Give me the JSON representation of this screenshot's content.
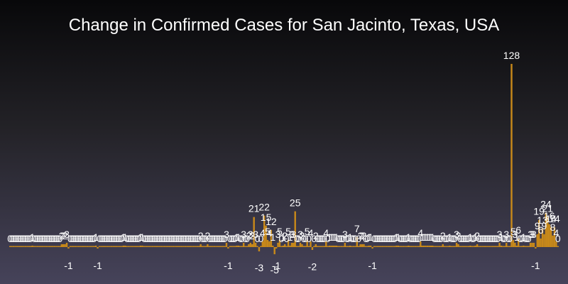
{
  "chart_data": {
    "type": "bar",
    "title": "Change in Confirmed Cases for San Jacinto, Texas, USA",
    "xlabel": "",
    "ylabel": "",
    "bar_color": "#c8891a",
    "label_color": "#ffffff",
    "ylim": [
      -5,
      128
    ],
    "grid": false,
    "legend": "none",
    "values": [
      0,
      0,
      0,
      0,
      0,
      0,
      0,
      0,
      0,
      0,
      0,
      0,
      0,
      1,
      0,
      0,
      0,
      0,
      0,
      0,
      0,
      0,
      0,
      0,
      0,
      0,
      0,
      0,
      0,
      0,
      2,
      2,
      2,
      3,
      -1,
      0,
      0,
      0,
      0,
      0,
      0,
      0,
      0,
      0,
      0,
      0,
      0,
      0,
      0,
      0,
      1,
      -1,
      0,
      0,
      0,
      0,
      0,
      0,
      0,
      0,
      0,
      0,
      0,
      0,
      0,
      0,
      1,
      1,
      0,
      0,
      0,
      0,
      0,
      0,
      0,
      0,
      1,
      1,
      0,
      0,
      0,
      0,
      0,
      0,
      0,
      0,
      0,
      0,
      0,
      0,
      0,
      0,
      0,
      0,
      0,
      0,
      0,
      0,
      0,
      0,
      0,
      0,
      0,
      0,
      0,
      0,
      0,
      0,
      0,
      0,
      0,
      2,
      0,
      0,
      0,
      2,
      0,
      0,
      0,
      0,
      0,
      0,
      0,
      0,
      0,
      0,
      3,
      -1,
      0,
      0,
      0,
      0,
      1,
      1,
      0,
      0,
      3,
      0,
      0,
      2,
      3,
      2,
      21,
      3,
      0,
      -3,
      0,
      4,
      22,
      15,
      5,
      4,
      12,
      1,
      -5,
      -1,
      3,
      5,
      0,
      1,
      2,
      0,
      5,
      1,
      3,
      3,
      25,
      0,
      0,
      3,
      2,
      0,
      0,
      5,
      0,
      4,
      -2,
      0,
      2,
      0,
      0,
      0,
      0,
      0,
      4,
      0,
      1,
      1,
      1,
      1,
      1,
      0,
      0,
      0,
      0,
      3,
      0,
      0,
      1,
      0,
      0,
      0,
      7,
      0,
      2,
      2,
      2,
      0,
      0,
      1,
      1,
      -1,
      0,
      0,
      0,
      0,
      0,
      0,
      0,
      0,
      0,
      0,
      0,
      0,
      0,
      1,
      1,
      0,
      0,
      0,
      0,
      0,
      1,
      0,
      0,
      0,
      0,
      0,
      0,
      4,
      1,
      1,
      1,
      1,
      1,
      1,
      1,
      0,
      0,
      0,
      0,
      0,
      2,
      0,
      0,
      0,
      1,
      0,
      0,
      0,
      3,
      2,
      0,
      0,
      0,
      0,
      0,
      0,
      1,
      0,
      0,
      1,
      2,
      0,
      0,
      0,
      0,
      0,
      0,
      0,
      0,
      0,
      0,
      0,
      0,
      3,
      1,
      0,
      0,
      3,
      0,
      0,
      128,
      5,
      3,
      1,
      6,
      0,
      0,
      1,
      0,
      0,
      0,
      3,
      3,
      3,
      -1,
      9,
      19,
      6,
      13,
      9,
      24,
      21,
      16,
      14,
      8,
      14,
      4,
      0
    ]
  }
}
